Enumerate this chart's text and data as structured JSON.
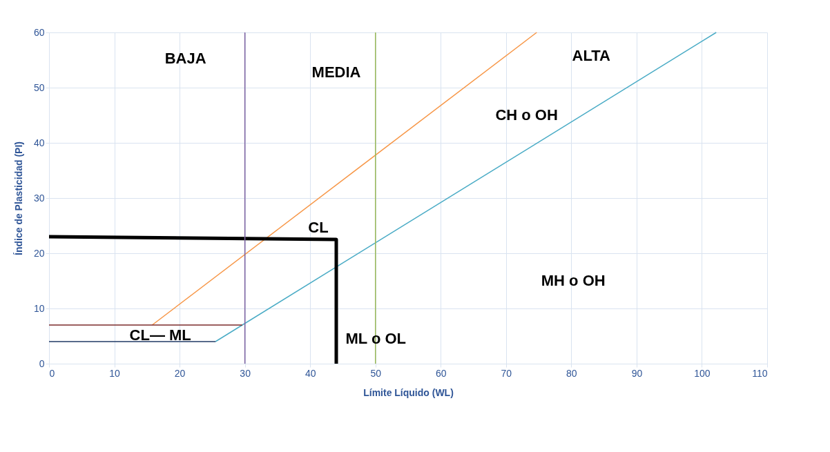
{
  "chart_data": {
    "type": "line",
    "xlabel": "Límite Líquido (WL)",
    "ylabel": "Índice de Plasticidad (PI)",
    "xlim": [
      0,
      110
    ],
    "ylim": [
      0,
      60
    ],
    "xticks": [
      0,
      10,
      20,
      30,
      40,
      50,
      60,
      70,
      80,
      90,
      100,
      110
    ],
    "yticks": [
      0,
      10,
      20,
      30,
      40,
      50,
      60
    ],
    "grid": true,
    "marker": "none",
    "line_style": "solid",
    "series": [
      {
        "color": "#f79646",
        "x": [
          15.8,
          74.7
        ],
        "values": [
          7,
          60
        ]
      },
      {
        "color": "#4bacc6",
        "x": [
          25.5,
          29.6,
          102.2
        ],
        "values": [
          4,
          7,
          60
        ]
      },
      {
        "color": "#7b2a2a",
        "x": [
          0,
          29.6
        ],
        "values": [
          7,
          7
        ]
      },
      {
        "color": "#1f3864",
        "x": [
          0,
          25.5
        ],
        "values": [
          4,
          4
        ]
      },
      {
        "color": "#000000",
        "x": [
          0,
          44,
          44
        ],
        "values": [
          23,
          22.5,
          0
        ]
      }
    ],
    "ref_lines": [
      {
        "axis": "x",
        "value": 30,
        "color": "#8064a2"
      },
      {
        "axis": "x",
        "value": 50,
        "color": "#9bbb59"
      }
    ],
    "annotations": [
      "BAJA",
      "MEDIA",
      "ALTA",
      "CH  o OH",
      "CL",
      "MH  o OH",
      "ML  o  OL",
      "CL— ML"
    ]
  }
}
